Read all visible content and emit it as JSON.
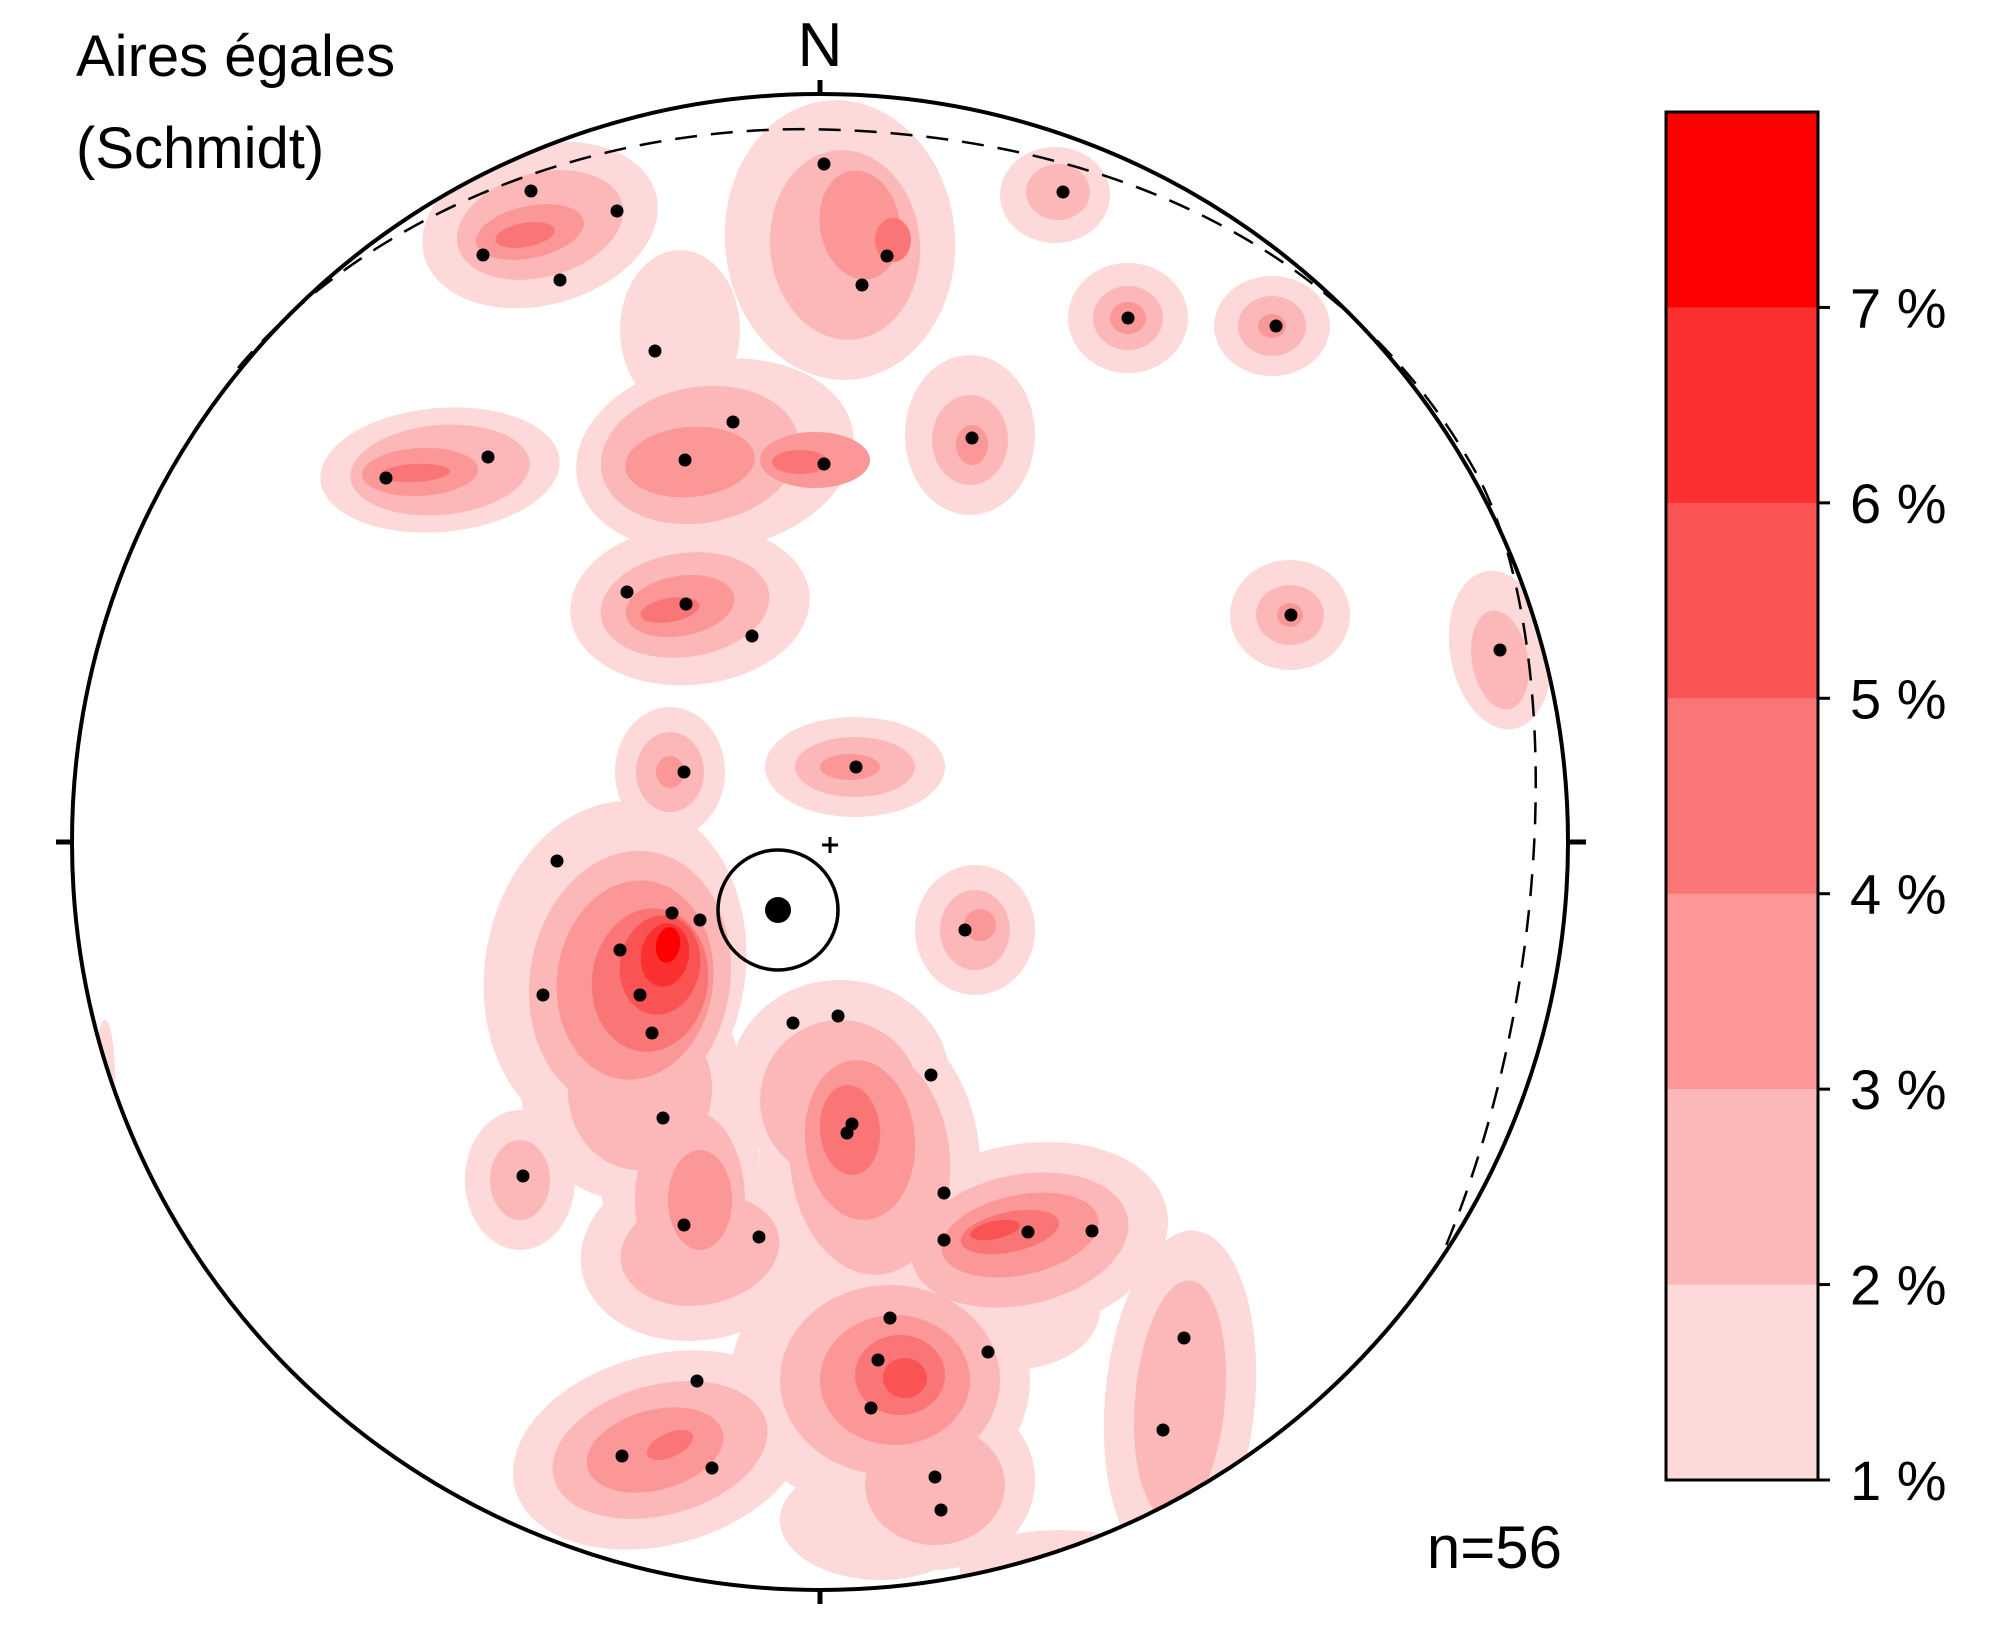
{
  "title_line1": "Aires égales",
  "title_line2": "(Schmidt)",
  "north_label": "N",
  "count_label": "n=56",
  "legend": {
    "tick_labels": [
      "1 %",
      "2 %",
      "3 %",
      "4 %",
      "5 %",
      "6 %",
      "7 %"
    ],
    "band_colors": [
      "#fdd9d9",
      "#fcb8b8",
      "#fb9797",
      "#fa7575",
      "#f95353",
      "#fb3030",
      "#ff0000"
    ]
  },
  "colors": {
    "primitive": "#000000",
    "pole": "#000000",
    "great_circle_dashed": "#000000"
  }
}
